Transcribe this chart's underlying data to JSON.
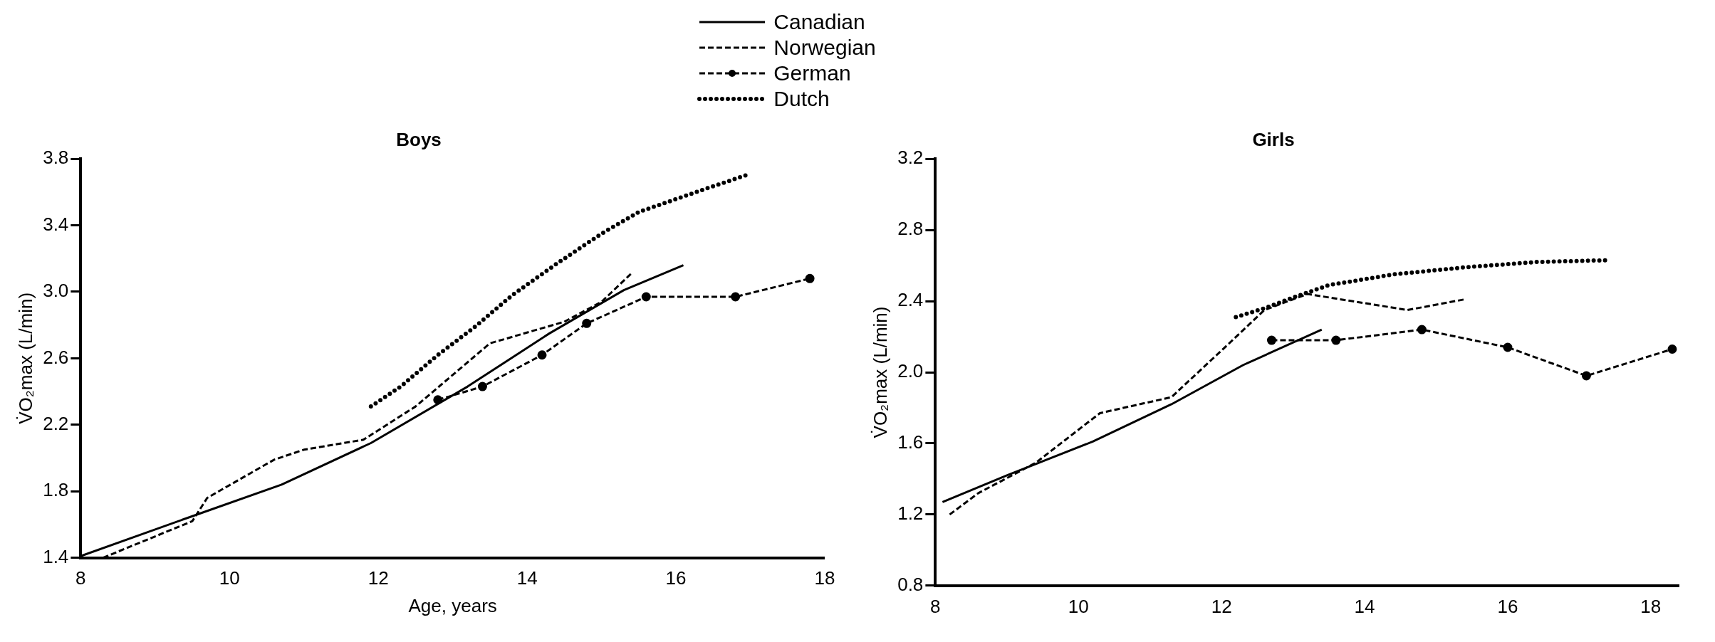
{
  "chart_data": [
    {
      "type": "line",
      "title": "Boys",
      "xlabel": "Age, years",
      "ylabel": "V̇O₂max (L/min)",
      "xlim": [
        8,
        18
      ],
      "xticks": [
        8,
        10,
        12,
        14,
        16,
        18
      ],
      "ylim": [
        1.4,
        3.8
      ],
      "yticks": [
        1.4,
        1.8,
        2.2,
        2.6,
        {
          "value": 3,
          "label": "3.0"
        },
        3.4,
        3.8
      ],
      "grid": false,
      "legend": "top",
      "series": [
        {
          "name": "Canadian",
          "color": "#000000",
          "line_style": "solid",
          "marker": "none",
          "x": [
            8,
            9.5,
            10.7,
            11.9,
            13.2,
            14.3,
            15.3,
            16.1
          ],
          "values": [
            1.41,
            1.65,
            1.84,
            2.09,
            2.43,
            2.75,
            3.01,
            3.16
          ]
        },
        {
          "name": "Norwegian",
          "color": "#000000",
          "line_style": "dashed",
          "marker": "none",
          "x": [
            8.3,
            9.5,
            9.7,
            10.6,
            11,
            11.8,
            12.5,
            13.5,
            14.5,
            15,
            15.4
          ],
          "values": [
            1.4,
            1.62,
            1.76,
            1.99,
            2.05,
            2.11,
            2.31,
            2.69,
            2.82,
            2.94,
            3.11
          ]
        },
        {
          "name": "German",
          "color": "#000000",
          "line_style": "dashed",
          "marker": "circle",
          "x": [
            12.8,
            13.4,
            14.2,
            14.8,
            15.6,
            16.8,
            17.8
          ],
          "values": [
            2.35,
            2.43,
            2.62,
            2.81,
            2.97,
            2.97,
            3.08
          ]
        },
        {
          "name": "Dutch",
          "color": "#000000",
          "line_style": "dotted",
          "marker": "none",
          "x": [
            11.9,
            12.3,
            12.8,
            13.3,
            13.8,
            14.4,
            15,
            15.5,
            16.4,
            17
          ],
          "values": [
            2.31,
            2.43,
            2.62,
            2.79,
            2.98,
            3.17,
            3.35,
            3.48,
            3.62,
            3.71
          ]
        }
      ]
    },
    {
      "type": "line",
      "title": "Girls",
      "ylabel": "V̇O₂max (L/min)",
      "xlim": [
        8,
        18.4
      ],
      "xticks": [
        8,
        10,
        12,
        14,
        16,
        18
      ],
      "ylim": [
        0.8,
        3.2
      ],
      "yticks": [
        0.8,
        1.2,
        1.6,
        {
          "value": 2,
          "label": "2.0"
        },
        2.4,
        2.8,
        3.2
      ],
      "grid": false,
      "series": [
        {
          "color": "#000000",
          "line_style": "solid",
          "marker": "none",
          "x": [
            8.1,
            9,
            10.2,
            11.3,
            12.3,
            13.4
          ],
          "values": [
            1.27,
            1.42,
            1.61,
            1.82,
            2.04,
            2.24
          ]
        },
        {
          "color": "#000000",
          "line_style": "dashed",
          "marker": "none",
          "x": [
            8.2,
            8.6,
            9.4,
            10.3,
            11.3,
            12.1,
            12.6,
            13.2,
            14.6,
            15.4
          ],
          "values": [
            1.2,
            1.32,
            1.49,
            1.77,
            1.86,
            2.16,
            2.35,
            2.44,
            2.35,
            2.41
          ]
        },
        {
          "color": "#000000",
          "line_style": "dashed",
          "marker": "circle",
          "x": [
            12.7,
            13.6,
            14.8,
            16,
            17.1,
            18.3
          ],
          "values": [
            2.18,
            2.18,
            2.24,
            2.14,
            1.98,
            2.13
          ]
        },
        {
          "color": "#000000",
          "line_style": "dotted",
          "marker": "none",
          "x": [
            12.2,
            12.6,
            13,
            13.5,
            14.4,
            15.4,
            16.4,
            17.4
          ],
          "values": [
            2.31,
            2.36,
            2.42,
            2.49,
            2.55,
            2.59,
            2.62,
            2.63
          ]
        }
      ]
    }
  ]
}
